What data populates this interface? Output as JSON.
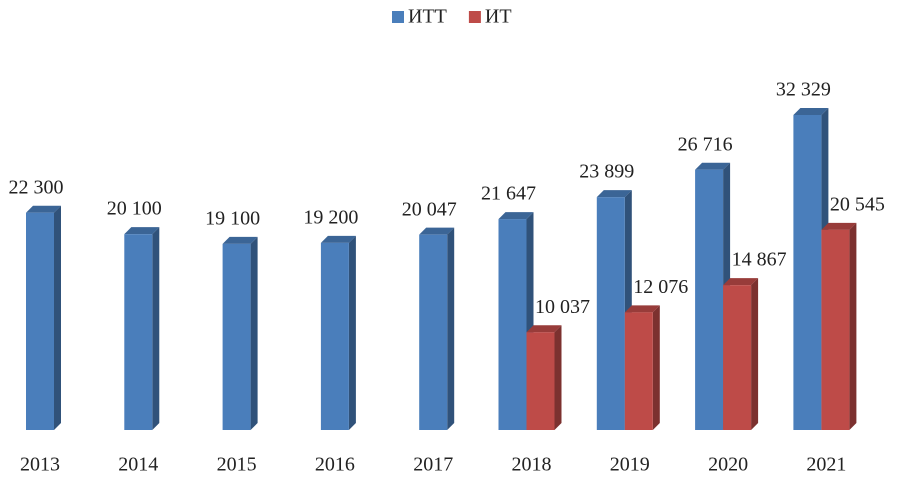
{
  "chart_data": {
    "type": "bar",
    "categories": [
      "2013",
      "2014",
      "2015",
      "2016",
      "2017",
      "2018",
      "2019",
      "2020",
      "2021"
    ],
    "series": [
      {
        "name": "ИТТ",
        "color": "#4a7ebb",
        "values": [
          22300,
          20100,
          19100,
          19200,
          20047,
          21647,
          23899,
          26716,
          32329
        ],
        "value_labels": [
          "22 300",
          "20 100",
          "19 100",
          "19 200",
          "20 047",
          "21 647",
          "23 899",
          "26 716",
          "32 329"
        ]
      },
      {
        "name": "ИТ",
        "color": "#be4b48",
        "values": [
          null,
          null,
          null,
          null,
          null,
          10037,
          12076,
          14867,
          20545
        ],
        "value_labels": [
          null,
          null,
          null,
          null,
          null,
          "10 037",
          "12 076",
          "14 867",
          "20 545"
        ]
      }
    ],
    "legend": "top"
  }
}
